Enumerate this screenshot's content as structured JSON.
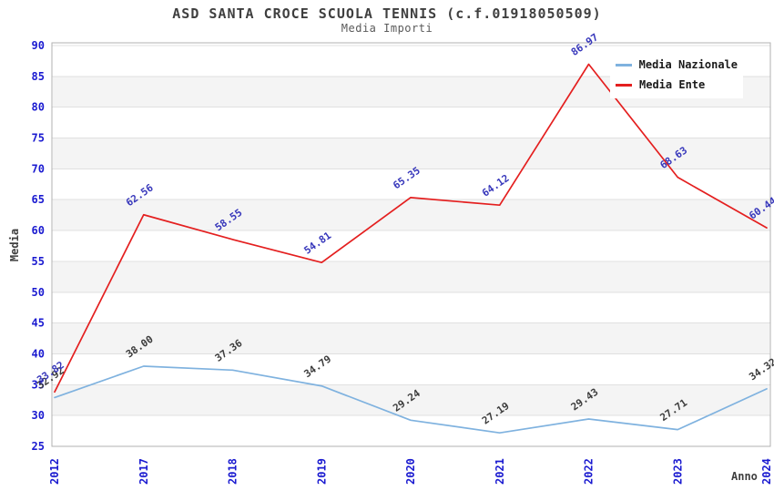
{
  "header": {
    "title": "ASD SANTA CROCE SCUOLA TENNIS (c.f.01918050509)",
    "subtitle": "Media Importi"
  },
  "chart_data": {
    "type": "line",
    "title": "ASD SANTA CROCE SCUOLA TENNIS (c.f.01918050509)",
    "subtitle": "Media Importi",
    "xlabel": "Anno",
    "ylabel": "Media",
    "categories": [
      "2012",
      "2017",
      "2018",
      "2019",
      "2020",
      "2021",
      "2022",
      "2023",
      "2024"
    ],
    "series": [
      {
        "name": "Media Nazionale",
        "color": "#7fb2df",
        "label_color": "#3c3c3c",
        "values": [
          32.92,
          38.0,
          37.36,
          34.79,
          29.24,
          27.19,
          29.43,
          27.71,
          34.32
        ]
      },
      {
        "name": "Media Ente",
        "color": "#e41f1f",
        "label_color": "#3737bb",
        "values": [
          33.82,
          62.56,
          58.55,
          54.81,
          65.35,
          64.12,
          86.97,
          68.63,
          60.44
        ]
      }
    ],
    "ylim": [
      25,
      90
    ],
    "ytick_step": 5,
    "yticks": [
      25,
      30,
      35,
      40,
      45,
      50,
      55,
      60,
      65,
      70,
      75,
      80,
      85,
      90
    ],
    "grid": true,
    "legend_position": "top-right",
    "bands": [
      30,
      40,
      50,
      60,
      70,
      80
    ],
    "band_color": "#f4f4f4",
    "gridline_color": "#e0e0e0",
    "border_color": "#b0b0b0",
    "tick_label_color": "#1a1ad0"
  }
}
